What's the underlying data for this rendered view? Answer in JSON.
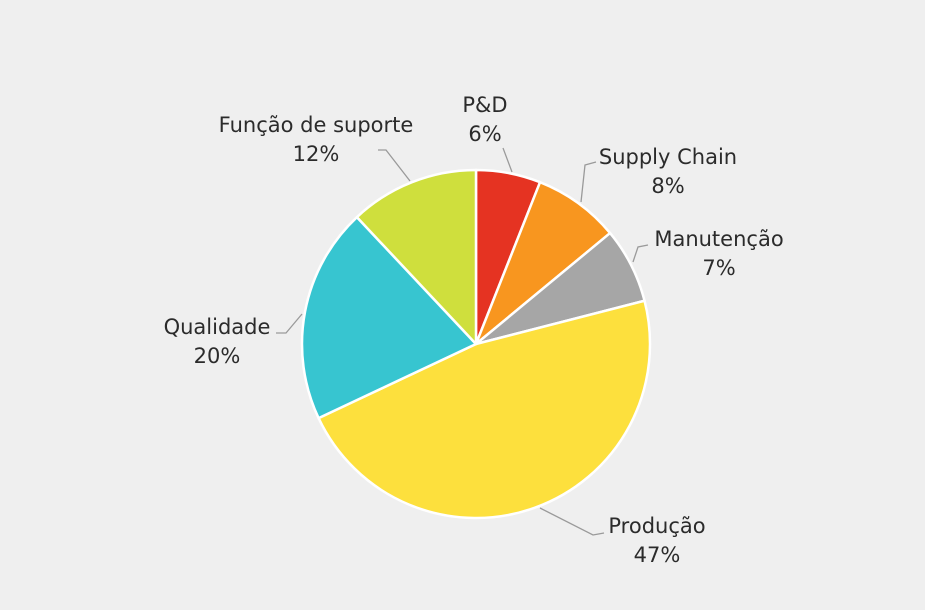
{
  "chart_data": {
    "type": "pie",
    "categories": [
      "P&D",
      "Supply Chain",
      "Manutenção",
      "Produção",
      "Qualidade",
      "Função de suporte"
    ],
    "values": [
      6,
      8,
      7,
      47,
      20,
      12
    ],
    "value_labels": [
      "6%",
      "8%",
      "7%",
      "47%",
      "20%",
      "12%"
    ],
    "colors": [
      "#e53322",
      "#f8961f",
      "#a6a6a6",
      "#fde03d",
      "#37c5d0",
      "#cfdf3d"
    ],
    "start_angle_deg": 0,
    "direction": "clockwise",
    "legend": "none"
  }
}
